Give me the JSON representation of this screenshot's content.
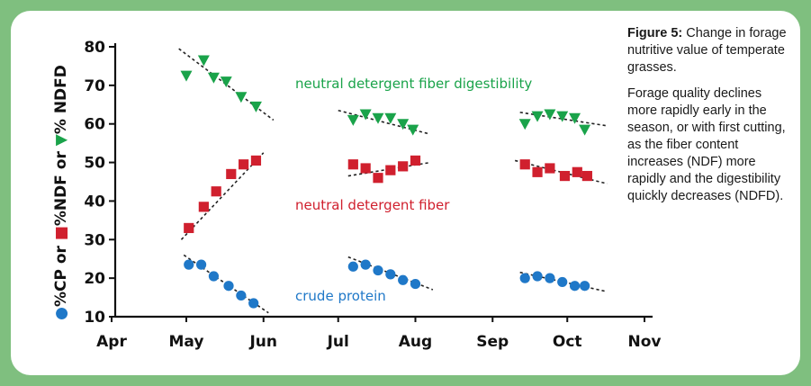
{
  "colors": {
    "background": "#7fbf7f",
    "ndfd": "#1aa34a",
    "ndf": "#d0202e",
    "cp": "#1f78c8",
    "axis": "#111111"
  },
  "caption": {
    "figure_label": "Figure 5:",
    "title_rest": " Change in forage nutritive value of temperate grasses.",
    "body": "Forage quality declines more rapidly early in the season, or with first cutting, as the fiber content increases (NDF) more rapidly and the digestibility quickly decreases (NDFD)."
  },
  "chart_data": {
    "type": "scatter",
    "x_tick_labels": [
      "Apr",
      "May",
      "Jun",
      "Jul",
      "Aug",
      "Sep",
      "Oct",
      "Nov"
    ],
    "xlim": [
      "Apr 1",
      "Nov 1"
    ],
    "ylim": [
      10,
      80
    ],
    "y_ticks": [
      10,
      20,
      30,
      40,
      50,
      60,
      70,
      80
    ],
    "ylabel_parts": {
      "cp": "%CP",
      "or1": " or ",
      "ndf": "%NDF",
      "or2": " or ",
      "ndfd": "% NDFD"
    },
    "annotations": {
      "ndfd": "neutral detergent fiber digestibility",
      "ndf": "neutral detergent fiber",
      "cp": "crude protein"
    },
    "series": [
      {
        "key": "ndfd",
        "marker": "triangle-down",
        "groups": [
          {
            "points": [
              [
                "May 1",
                72.5
              ],
              [
                "May 8",
                76.5
              ],
              [
                "May 12",
                72
              ],
              [
                "May 17",
                71
              ],
              [
                "May 23",
                67
              ],
              [
                "May 29",
                64.5
              ]
            ],
            "trend": [
              [
                "Apr 28",
                79.5
              ],
              [
                "Jun 5",
                61
              ]
            ]
          },
          {
            "points": [
              [
                "Jul 7",
                61
              ],
              [
                "Jul 12",
                62.5
              ],
              [
                "Jul 17",
                61.5
              ],
              [
                "Jul 22",
                61.5
              ],
              [
                "Jul 27",
                60
              ],
              [
                "Jul 31",
                58.5
              ]
            ],
            "trend": [
              [
                "Jul 1",
                63.5
              ],
              [
                "Aug 6",
                57.5
              ]
            ]
          },
          {
            "points": [
              [
                "Sep 14",
                60
              ],
              [
                "Sep 19",
                62
              ],
              [
                "Sep 24",
                62.5
              ],
              [
                "Sep 29",
                62
              ],
              [
                "Oct 4",
                61.5
              ],
              [
                "Oct 8",
                58.5
              ]
            ],
            "trend": [
              [
                "Sep 12",
                63
              ],
              [
                "Oct 17",
                59.5
              ]
            ]
          }
        ]
      },
      {
        "key": "ndf",
        "marker": "square",
        "groups": [
          {
            "points": [
              [
                "May 2",
                33
              ],
              [
                "May 8",
                38.5
              ],
              [
                "May 13",
                42.5
              ],
              [
                "May 19",
                47
              ],
              [
                "May 24",
                49.5
              ],
              [
                "May 29",
                50.5
              ]
            ],
            "trend": [
              [
                "Apr 29",
                30
              ],
              [
                "Jun 1",
                52.5
              ]
            ]
          },
          {
            "points": [
              [
                "Jul 7",
                49.5
              ],
              [
                "Jul 12",
                48.5
              ],
              [
                "Jul 17",
                46
              ],
              [
                "Jul 22",
                48
              ],
              [
                "Jul 27",
                49
              ],
              [
                "Aug 1",
                50.5
              ]
            ],
            "trend": [
              [
                "Jul 5",
                46.5
              ],
              [
                "Aug 7",
                50
              ]
            ]
          },
          {
            "points": [
              [
                "Sep 14",
                49.5
              ],
              [
                "Sep 19",
                47.5
              ],
              [
                "Sep 24",
                48.5
              ],
              [
                "Sep 30",
                46.5
              ],
              [
                "Oct 5",
                47.5
              ],
              [
                "Oct 9",
                46.5
              ]
            ],
            "trend": [
              [
                "Sep 10",
                50.5
              ],
              [
                "Oct 17",
                44.5
              ]
            ]
          }
        ]
      },
      {
        "key": "cp",
        "marker": "circle",
        "groups": [
          {
            "points": [
              [
                "May 2",
                23.5
              ],
              [
                "May 7",
                23.5
              ],
              [
                "May 12",
                20.5
              ],
              [
                "May 18",
                18
              ],
              [
                "May 23",
                15.5
              ],
              [
                "May 28",
                13.5
              ]
            ],
            "trend": [
              [
                "Apr 30",
                26
              ],
              [
                "Jun 3",
                11
              ]
            ]
          },
          {
            "points": [
              [
                "Jul 7",
                23
              ],
              [
                "Jul 12",
                23.5
              ],
              [
                "Jul 17",
                22
              ],
              [
                "Jul 22",
                21
              ],
              [
                "Jul 27",
                19.5
              ],
              [
                "Aug 1",
                18.5
              ]
            ],
            "trend": [
              [
                "Jul 5",
                25.5
              ],
              [
                "Aug 8",
                17
              ]
            ]
          },
          {
            "points": [
              [
                "Sep 14",
                20
              ],
              [
                "Sep 19",
                20.5
              ],
              [
                "Sep 24",
                20
              ],
              [
                "Sep 29",
                19
              ],
              [
                "Oct 4",
                18
              ],
              [
                "Oct 8",
                18
              ]
            ],
            "trend": [
              [
                "Sep 12",
                21.5
              ],
              [
                "Oct 17",
                16.5
              ]
            ]
          }
        ]
      }
    ]
  }
}
